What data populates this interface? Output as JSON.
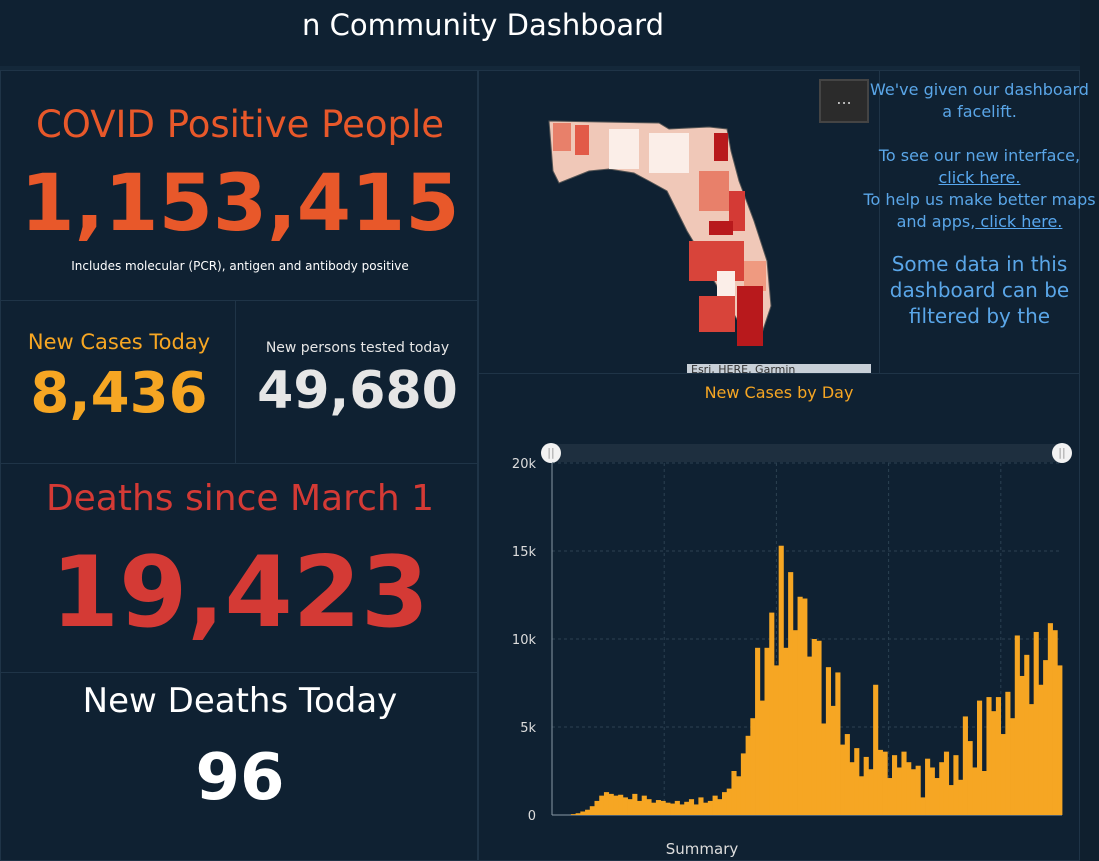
{
  "header": {
    "title": "n Community Dashboard"
  },
  "positive": {
    "label": "COVID Positive People",
    "value": "1,153,415",
    "note": "Includes molecular (PCR), antigen and antibody positive",
    "color": "#e8582a"
  },
  "new_cases": {
    "label": "New Cases Today",
    "value": "8,436",
    "color": "#f6a623"
  },
  "tested": {
    "label": "New persons tested today",
    "value": "49,680",
    "color": "#e6e6e6"
  },
  "deaths": {
    "label": "Deaths since March 1",
    "value": "19,423",
    "color": "#d43a35"
  },
  "new_deaths": {
    "label": "New Deaths Today",
    "value": "96"
  },
  "map": {
    "menu_label": "...",
    "attribution": "Esri, HERE, Garmin"
  },
  "info": {
    "line1": "We've given our dashboard a facelift.",
    "line2": "To see our new interface,",
    "link1": " click here.",
    "line3": "To help us make better maps and apps,",
    "link2": " click here.",
    "line4": "Some data in this dashboard can be filtered by the"
  },
  "chart_data": {
    "type": "bar",
    "title": "New Cases by Day",
    "xlabel": "Summary",
    "ylabel": "",
    "ylim": [
      0,
      20000
    ],
    "yticks": [
      "0",
      "5k",
      "10k",
      "15k",
      "20k"
    ],
    "grid": true,
    "color": "#f6a623",
    "values": [
      0,
      0,
      0,
      0,
      50,
      100,
      200,
      300,
      500,
      800,
      1100,
      1300,
      1200,
      1100,
      1150,
      1000,
      900,
      1200,
      800,
      1100,
      900,
      700,
      850,
      800,
      700,
      650,
      800,
      600,
      750,
      900,
      600,
      1000,
      700,
      800,
      1100,
      900,
      1300,
      1500,
      2500,
      2200,
      3500,
      4500,
      5500,
      9500,
      6500,
      9500,
      11500,
      8500,
      15300,
      9500,
      13800,
      10500,
      12400,
      12300,
      9000,
      10000,
      9900,
      5200,
      8400,
      6200,
      8100,
      4000,
      4600,
      3000,
      3800,
      2200,
      3300,
      2600,
      7400,
      3700,
      3600,
      2100,
      3400,
      2700,
      3600,
      3000,
      2600,
      2800,
      1000,
      3200,
      2700,
      2100,
      3000,
      3600,
      1700,
      3400,
      2000,
      5600,
      4200,
      2700,
      6500,
      2500,
      6700,
      5900,
      6700,
      4600,
      7000,
      5500,
      10200,
      7900,
      9100,
      6300,
      10400,
      7400,
      8800,
      10900,
      10500,
      8500
    ]
  }
}
